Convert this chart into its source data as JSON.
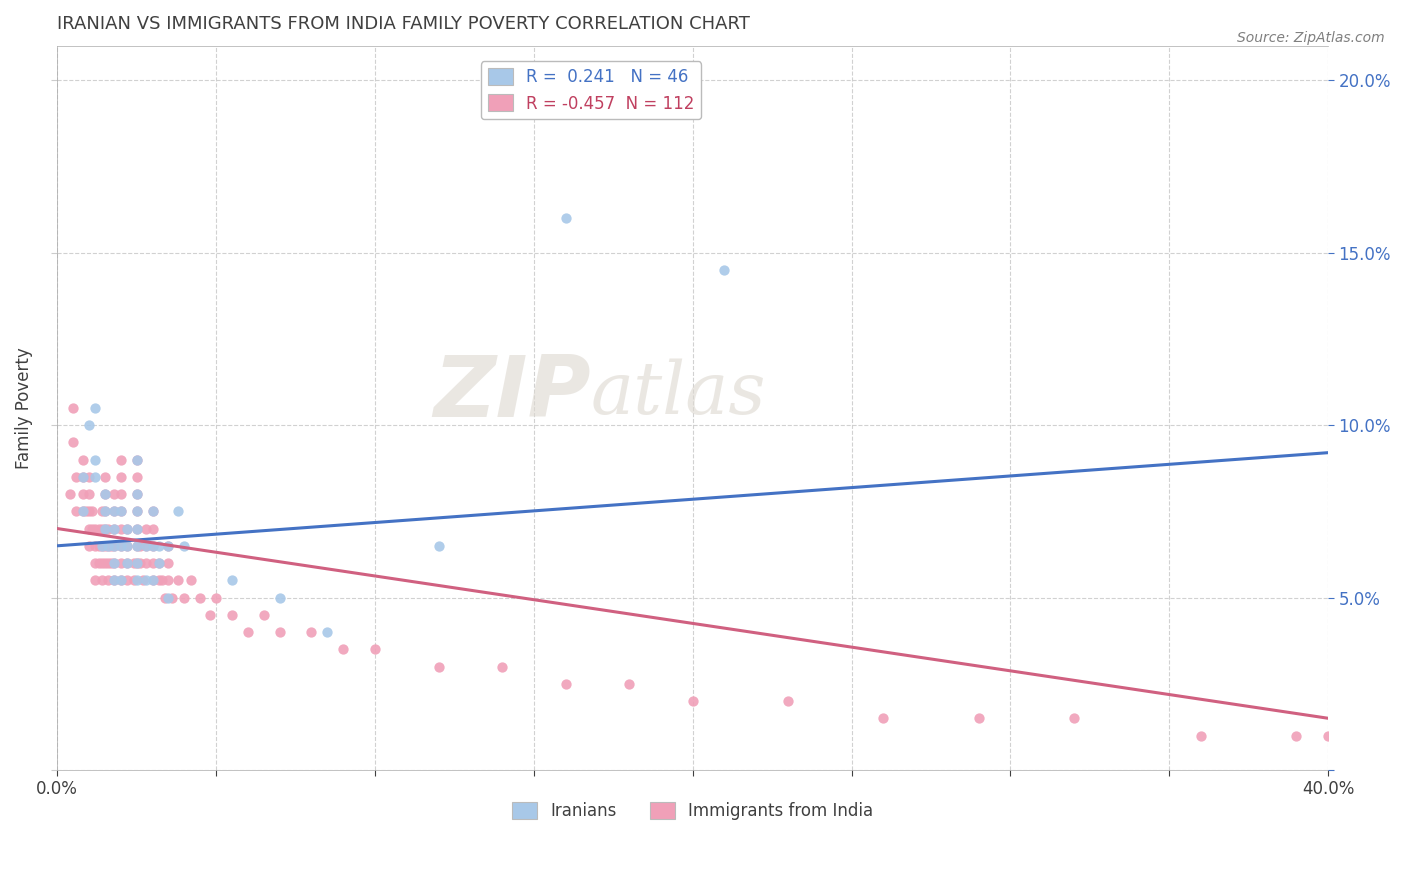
{
  "title": "IRANIAN VS IMMIGRANTS FROM INDIA FAMILY POVERTY CORRELATION CHART",
  "source": "Source: ZipAtlas.com",
  "ylabel": "Family Poverty",
  "xlim": [
    0.0,
    0.4
  ],
  "ylim": [
    0.0,
    0.21
  ],
  "legend_label1": "Iranians",
  "legend_label2": "Immigrants from India",
  "r1": 0.241,
  "n1": 46,
  "r2": -0.457,
  "n2": 112,
  "color1": "#A8C8E8",
  "color2": "#F0A0B8",
  "line_color1": "#4472C4",
  "line_color2": "#D06080",
  "watermark_zip": "ZIP",
  "watermark_atlas": "atlas",
  "title_color": "#404040",
  "background_color": "#FFFFFF",
  "blue_line_x0": 0.0,
  "blue_line_y0": 0.065,
  "blue_line_x1": 0.4,
  "blue_line_y1": 0.092,
  "pink_line_x0": 0.0,
  "pink_line_y0": 0.07,
  "pink_line_x1": 0.4,
  "pink_line_y1": 0.015,
  "iranians_x": [
    0.008,
    0.008,
    0.01,
    0.012,
    0.012,
    0.012,
    0.014,
    0.015,
    0.015,
    0.015,
    0.016,
    0.018,
    0.018,
    0.018,
    0.018,
    0.018,
    0.02,
    0.02,
    0.02,
    0.022,
    0.022,
    0.022,
    0.025,
    0.025,
    0.025,
    0.025,
    0.025,
    0.025,
    0.025,
    0.028,
    0.028,
    0.03,
    0.03,
    0.03,
    0.032,
    0.032,
    0.035,
    0.035,
    0.038,
    0.04,
    0.055,
    0.07,
    0.085,
    0.12,
    0.16,
    0.21
  ],
  "iranians_y": [
    0.075,
    0.085,
    0.1,
    0.085,
    0.09,
    0.105,
    0.065,
    0.07,
    0.075,
    0.08,
    0.065,
    0.055,
    0.06,
    0.065,
    0.07,
    0.075,
    0.055,
    0.065,
    0.075,
    0.06,
    0.065,
    0.07,
    0.055,
    0.06,
    0.065,
    0.07,
    0.075,
    0.08,
    0.09,
    0.055,
    0.065,
    0.055,
    0.065,
    0.075,
    0.06,
    0.065,
    0.05,
    0.065,
    0.075,
    0.065,
    0.055,
    0.05,
    0.04,
    0.065,
    0.16,
    0.145
  ],
  "india_x": [
    0.004,
    0.005,
    0.005,
    0.006,
    0.006,
    0.008,
    0.008,
    0.008,
    0.008,
    0.009,
    0.01,
    0.01,
    0.01,
    0.01,
    0.01,
    0.011,
    0.011,
    0.012,
    0.012,
    0.012,
    0.012,
    0.013,
    0.013,
    0.013,
    0.014,
    0.014,
    0.014,
    0.014,
    0.014,
    0.015,
    0.015,
    0.015,
    0.015,
    0.015,
    0.015,
    0.016,
    0.016,
    0.016,
    0.016,
    0.017,
    0.017,
    0.018,
    0.018,
    0.018,
    0.018,
    0.018,
    0.018,
    0.02,
    0.02,
    0.02,
    0.02,
    0.02,
    0.02,
    0.02,
    0.02,
    0.022,
    0.022,
    0.022,
    0.022,
    0.024,
    0.024,
    0.025,
    0.025,
    0.025,
    0.025,
    0.025,
    0.025,
    0.025,
    0.026,
    0.026,
    0.027,
    0.028,
    0.028,
    0.028,
    0.03,
    0.03,
    0.03,
    0.03,
    0.03,
    0.032,
    0.032,
    0.033,
    0.034,
    0.035,
    0.035,
    0.035,
    0.036,
    0.038,
    0.04,
    0.042,
    0.045,
    0.048,
    0.05,
    0.055,
    0.06,
    0.065,
    0.07,
    0.08,
    0.09,
    0.1,
    0.12,
    0.14,
    0.16,
    0.18,
    0.2,
    0.23,
    0.26,
    0.29,
    0.32,
    0.36,
    0.39,
    0.4
  ],
  "india_y": [
    0.08,
    0.095,
    0.105,
    0.075,
    0.085,
    0.075,
    0.08,
    0.085,
    0.09,
    0.075,
    0.065,
    0.07,
    0.075,
    0.08,
    0.085,
    0.07,
    0.075,
    0.055,
    0.06,
    0.065,
    0.07,
    0.06,
    0.065,
    0.07,
    0.055,
    0.06,
    0.065,
    0.07,
    0.075,
    0.06,
    0.065,
    0.07,
    0.075,
    0.08,
    0.085,
    0.055,
    0.06,
    0.065,
    0.07,
    0.06,
    0.065,
    0.055,
    0.06,
    0.065,
    0.07,
    0.075,
    0.08,
    0.055,
    0.06,
    0.065,
    0.07,
    0.075,
    0.08,
    0.085,
    0.09,
    0.055,
    0.06,
    0.065,
    0.07,
    0.055,
    0.06,
    0.06,
    0.065,
    0.07,
    0.075,
    0.08,
    0.085,
    0.09,
    0.06,
    0.065,
    0.055,
    0.06,
    0.065,
    0.07,
    0.055,
    0.06,
    0.065,
    0.07,
    0.075,
    0.055,
    0.06,
    0.055,
    0.05,
    0.055,
    0.06,
    0.065,
    0.05,
    0.055,
    0.05,
    0.055,
    0.05,
    0.045,
    0.05,
    0.045,
    0.04,
    0.045,
    0.04,
    0.04,
    0.035,
    0.035,
    0.03,
    0.03,
    0.025,
    0.025,
    0.02,
    0.02,
    0.015,
    0.015,
    0.015,
    0.01,
    0.01,
    0.01
  ]
}
